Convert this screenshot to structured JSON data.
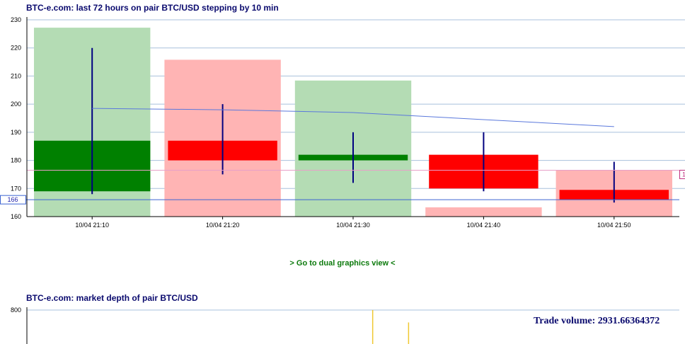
{
  "header": {
    "candles_title": "BTC-e.com: last 72 hours on pair BTC/USD stepping by 10 min",
    "depth_title": "BTC-e.com: market depth of pair BTC/USD"
  },
  "links": {
    "dual_view": "> Go to dual graphics view <"
  },
  "trade_volume": "Trade volume: 2931.66364372",
  "colors": {
    "up_body": "#008000",
    "down_body": "#ff0000",
    "up_volume": "#b4dcb4",
    "down_volume": "#ffb4b4",
    "wick": "#000080",
    "average_line": "#5a78dc",
    "grid": "#a8c0dc",
    "current_price_line": "#3c64d2",
    "depth_line": "#f0c832"
  },
  "chart_data": [
    {
      "type": "candlestick",
      "title": "BTC-e.com: last 72 hours on pair BTC/USD stepping by 10 min",
      "ylim": [
        160,
        230
      ],
      "yticks": [
        160,
        170,
        180,
        190,
        200,
        210,
        220,
        230
      ],
      "categories": [
        "10/04 21:10",
        "10/04 21:20",
        "10/04 21:30",
        "10/04 21:40",
        "10/04 21:50"
      ],
      "candles": [
        {
          "open": 169,
          "close": 187,
          "high": 220,
          "low": 168
        },
        {
          "open": 187,
          "close": 180,
          "high": 200,
          "low": 175
        },
        {
          "open": 180,
          "close": 182,
          "high": 190,
          "low": 172
        },
        {
          "open": 182,
          "close": 170,
          "high": 190,
          "low": 169
        },
        {
          "open": 169.5,
          "close": 166,
          "high": 179.5,
          "low": 165
        }
      ],
      "volume_bars": [
        {
          "direction": "up",
          "level": 227.2
        },
        {
          "direction": "down",
          "level": 215.8
        },
        {
          "direction": "up",
          "level": 208.4
        },
        {
          "direction": "down",
          "level": 163.3
        },
        {
          "direction": "down",
          "level": 176.5
        }
      ],
      "average_line": [
        198.5,
        198,
        197,
        194.5,
        192
      ],
      "current_price": 166,
      "current_price_label": "166",
      "reference_line": 176.5,
      "right_tag_label": "1",
      "grid": true
    },
    {
      "type": "area",
      "title": "BTC-e.com: market depth of pair BTC/USD",
      "yticks": [
        800
      ],
      "depth_markers": [
        {
          "position": 0.53,
          "top": 800
        },
        {
          "position": 0.585,
          "top": 765
        }
      ]
    }
  ]
}
